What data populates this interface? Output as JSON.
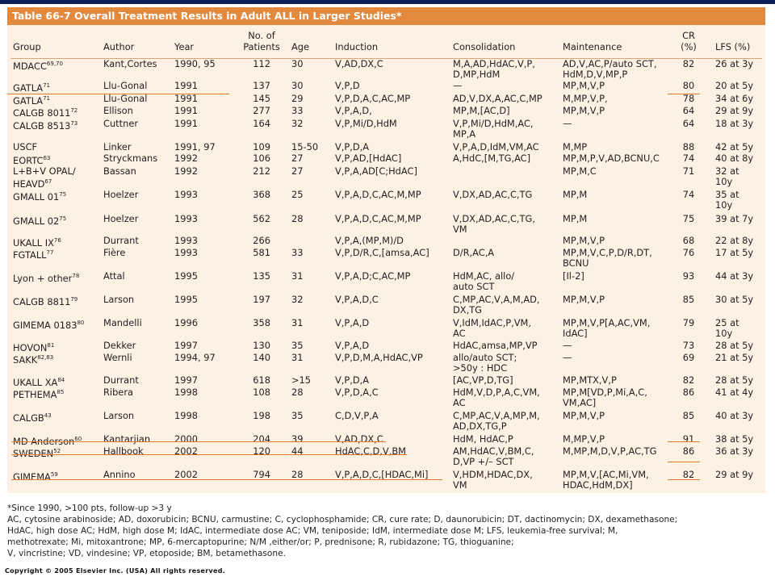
{
  "title": "Table 66-7  Overall Treatment Results in Adult ALL in Larger Studies*",
  "headers": {
    "group": "Group",
    "author": "Author",
    "year": "Year",
    "patients": [
      "No. of",
      "Patients"
    ],
    "age": "Age",
    "induction": "Induction",
    "consolidation": "Consolidation",
    "maintenance": "Maintenance",
    "cr": [
      "CR",
      "(%)"
    ],
    "lfs": "LFS (%)"
  },
  "rows": [
    {
      "group": [
        "MDACC"
      ],
      "sup": "69,70",
      "author": "Kant,Cortes",
      "year": "1990, 95",
      "patients": "112",
      "age": "30",
      "induction": [
        "V,AD,DX,C"
      ],
      "consolidation": [
        "M,A,AD,HdAC,V,P,",
        "   D,MP,HdM"
      ],
      "maintenance": [
        "AD,V,AC,P/auto SCT,",
        "   HdM,D,V,MP,P"
      ],
      "cr": "82",
      "lfs": [
        "26 at 3y"
      ]
    },
    {
      "group": [
        "GATLA"
      ],
      "sup": "71",
      "author": "Llu-Gonal",
      "year": "1991",
      "patients": "137",
      "age": "30",
      "induction": [
        "V,P,D"
      ],
      "consolidation": [
        "—"
      ],
      "maintenance": [
        "MP,M,V,P"
      ],
      "cr": "80",
      "lfs": [
        "20 at 5y"
      ]
    },
    {
      "group": [
        "GATLA"
      ],
      "sup": "71",
      "author": "Llu-Gonal",
      "year": "1991",
      "patients": "145",
      "age": "29",
      "induction": [
        "V,P,D,A,C,AC,MP"
      ],
      "consolidation": [
        "AD,V,DX,A,AC,C,MP"
      ],
      "maintenance": [
        "M,MP,V,P,"
      ],
      "cr": "78",
      "lfs": [
        "34 at 6y"
      ]
    },
    {
      "group": [
        "CALGB 8011"
      ],
      "sup": "72",
      "author": "Ellison",
      "year": "1991",
      "patients": "277",
      "age": "33",
      "induction": [
        "V,P,A,D,"
      ],
      "consolidation": [
        "MP,M,[AC,D]"
      ],
      "maintenance": [
        "MP,M,V,P"
      ],
      "cr": "64",
      "lfs": [
        "29 at 9y"
      ]
    },
    {
      "group": [
        "CALGB 8513"
      ],
      "sup": "73",
      "author": "Cuttner",
      "year": "1991",
      "patients": "164",
      "age": "32",
      "induction": [
        "V,P,Mi/D,HdM"
      ],
      "consolidation": [
        "V,P,Mi/D,HdM,AC,",
        "   MP,A"
      ],
      "maintenance": [
        "—"
      ],
      "cr": "64",
      "lfs": [
        "18 at 3y"
      ]
    },
    {
      "group": [
        "USCF"
      ],
      "sup": "",
      "author": "Linker",
      "year": "1991, 97",
      "patients": "109",
      "age": "15-50",
      "induction": [
        "V,P,D,A"
      ],
      "consolidation": [
        "V,P,A,D,IdM,VM,AC"
      ],
      "maintenance": [
        "M,MP"
      ],
      "cr": "88",
      "lfs": [
        "42 at 5y"
      ]
    },
    {
      "group": [
        "EORTC"
      ],
      "sup": "63",
      "author": "Stryckmans",
      "year": "1992",
      "patients": "106",
      "age": "27",
      "induction": [
        "V,P,AD,[HdAC]"
      ],
      "consolidation": [
        "A,HdC,[M,TG,AC]"
      ],
      "maintenance": [
        "MP,M,P,V,AD,BCNU,C"
      ],
      "cr": "74",
      "lfs": [
        "40 at 8y"
      ]
    },
    {
      "group": [
        "L+B+V OPAL/",
        "   HEAVD"
      ],
      "sup": "67",
      "author": "Bassan",
      "year": "1992",
      "patients": "212",
      "age": "27",
      "induction": [
        "V,P,A,AD[C;HdAC]"
      ],
      "consolidation": [
        ""
      ],
      "maintenance": [
        "MP,M,C"
      ],
      "cr": "71",
      "lfs": [
        "32 at",
        "   10y"
      ]
    },
    {
      "group": [
        "GMALL 01"
      ],
      "sup": "75",
      "author": "Hoelzer",
      "year": "1993",
      "patients": "368",
      "age": "25",
      "induction": [
        "V,P,A,D,C,AC,M,MP"
      ],
      "consolidation": [
        "V,DX,AD,AC,C,TG"
      ],
      "maintenance": [
        "MP,M"
      ],
      "cr": "74",
      "lfs": [
        "35 at",
        "   10y"
      ]
    },
    {
      "group": [
        "GMALL 02"
      ],
      "sup": "75",
      "author": "Hoelzer",
      "year": "1993",
      "patients": "562",
      "age": "28",
      "induction": [
        "V,P,A,D,C,AC,M,MP"
      ],
      "consolidation": [
        "V,DX,AD,AC,C,TG,",
        "   VM"
      ],
      "maintenance": [
        "MP,M"
      ],
      "cr": "75",
      "lfs": [
        "39 at 7y"
      ]
    },
    {
      "group": [
        "UKALL IX"
      ],
      "sup": "76",
      "author": "Durrant",
      "year": "1993",
      "patients": "266",
      "age": "",
      "induction": [
        "V,P,A,(MP,M)/D"
      ],
      "consolidation": [
        ""
      ],
      "maintenance": [
        "MP,M,V,P"
      ],
      "cr": "68",
      "lfs": [
        "22 at 8y"
      ]
    },
    {
      "group": [
        "FGTALL"
      ],
      "sup": "77",
      "author": "Fière",
      "year": "1993",
      "patients": "581",
      "age": "33",
      "induction": [
        "V,P,D/R,C,[amsa,AC]"
      ],
      "consolidation": [
        "D/R,AC,A"
      ],
      "maintenance": [
        "MP,M,V,C,P,D/R,DT,",
        "   BCNU"
      ],
      "cr": "76",
      "lfs": [
        "17 at 5y"
      ]
    },
    {
      "group": [
        "Lyon + other"
      ],
      "sup": "78",
      "author": "Attal",
      "year": "1995",
      "patients": "135",
      "age": "31",
      "induction": [
        "V,P,A,D;C,AC,MP"
      ],
      "consolidation": [
        "HdM,AC, allo/",
        "   auto SCT"
      ],
      "maintenance": [
        "[Il-2]"
      ],
      "cr": "93",
      "lfs": [
        "44 at 3y"
      ]
    },
    {
      "group": [
        "CALGB 8811"
      ],
      "sup": "79",
      "author": "Larson",
      "year": "1995",
      "patients": "197",
      "age": "32",
      "induction": [
        "V,P,A,D,C"
      ],
      "consolidation": [
        "C,MP,AC,V,A,M,AD,",
        "   DX,TG"
      ],
      "maintenance": [
        "MP,M,V,P"
      ],
      "cr": "85",
      "lfs": [
        "30 at 5y"
      ]
    },
    {
      "group": [
        "GIMEMA 0183"
      ],
      "sup": "80",
      "author": "Mandelli",
      "year": "1996",
      "patients": "358",
      "age": "31",
      "induction": [
        "V,P,A,D"
      ],
      "consolidation": [
        "V,IdM,IdAC,P,VM,",
        "   AC"
      ],
      "maintenance": [
        "MP,M,V,P[A,AC,VM,",
        "   IdAC]"
      ],
      "cr": "79",
      "lfs": [
        "25 at",
        "   10y"
      ]
    },
    {
      "group": [
        "HOVON"
      ],
      "sup": "81",
      "author": "Dekker",
      "year": "1997",
      "patients": "130",
      "age": "35",
      "induction": [
        "V,P,A,D"
      ],
      "consolidation": [
        "HdAC,amsa,MP,VP"
      ],
      "maintenance": [
        "—"
      ],
      "cr": "73",
      "lfs": [
        "28 at 5y"
      ]
    },
    {
      "group": [
        "SAKK"
      ],
      "sup": "82,83",
      "author": "Wernli",
      "year": "1994, 97",
      "patients": "140",
      "age": "31",
      "induction": [
        "V,P,D,M,A,HdAC,VP"
      ],
      "consolidation": [
        "allo/auto SCT;",
        "   >50y : HDC"
      ],
      "maintenance": [
        "—"
      ],
      "cr": "69",
      "lfs": [
        "21 at 5y"
      ]
    },
    {
      "group": [
        "UKALL XA"
      ],
      "sup": "84",
      "author": "Durrant",
      "year": "1997",
      "patients": "618",
      "age": ">15",
      "induction": [
        "V,P,D,A"
      ],
      "consolidation": [
        "[AC,VP,D,TG]"
      ],
      "maintenance": [
        "MP,MTX,V,P"
      ],
      "cr": "82",
      "lfs": [
        "28 at 5y"
      ]
    },
    {
      "group": [
        "PETHEMA"
      ],
      "sup": "85",
      "author": "Ribera",
      "year": "1998",
      "patients": "108",
      "age": "28",
      "induction": [
        "V,P,D,A,C"
      ],
      "consolidation": [
        "HdM,V,D,P,A,C,VM,",
        "   AC"
      ],
      "maintenance": [
        "MP,M[VD,P,Mi,A,C,",
        "   VM,AC]"
      ],
      "cr": "86",
      "lfs": [
        "41 at 4y"
      ]
    },
    {
      "group": [
        "CALGB"
      ],
      "sup": "43",
      "author": "Larson",
      "year": "1998",
      "patients": "198",
      "age": "35",
      "induction": [
        "C,D,V,P,A"
      ],
      "consolidation": [
        "C,MP,AC,V,A,MP,M,",
        "   AD,DX,TG,P"
      ],
      "maintenance": [
        "MP,M,V,P"
      ],
      "cr": "85",
      "lfs": [
        "40 at 3y"
      ]
    },
    {
      "group": [
        "MD Anderson"
      ],
      "sup": "60",
      "author": "Kantarjian",
      "year": "2000",
      "patients": "204",
      "age": "39",
      "induction": [
        "V,AD,DX,C"
      ],
      "consolidation": [
        "HdM, HdAC,P"
      ],
      "maintenance": [
        "M,MP,V,P"
      ],
      "cr": "91",
      "lfs": [
        "38 at 5y"
      ]
    },
    {
      "group": [
        "SWEDEN"
      ],
      "sup": "52",
      "author": "Hallbook",
      "year": "2002",
      "patients": "120",
      "age": "44",
      "induction": [
        "HdAC,C,D,V,BM"
      ],
      "consolidation": [
        "AM,HdAC,V,BM,C,",
        "   D,VP +/– SCT"
      ],
      "maintenance": [
        "M,MP,M,D,V,P,AC,TG"
      ],
      "cr": "86",
      "lfs": [
        "36 at 3y"
      ]
    },
    {
      "group": [
        "GIMEMA"
      ],
      "sup": "59",
      "author": "Annino",
      "year": "2002",
      "patients": "794",
      "age": "28",
      "induction": [
        "V,P,A,D,C,[HDAC,Mi]"
      ],
      "consolidation": [
        "V,HDM,HDAC,DX,",
        "   VM"
      ],
      "maintenance": [
        "MP,M,V,[AC,Mi,VM,",
        "   HDAC,HdM,DX]"
      ],
      "cr": "82",
      "lfs": [
        "29 at 9y"
      ]
    }
  ],
  "footnotes": [
    "*Since 1990, >100 pts, follow-up >3 y",
    "AC, cytosine arabinoside; AD, doxorubicin; BCNU, carmustine; C, cyclophosphamide; CR, cure rate; D, daunorubicin; DT, dactinomycin; DX, dexamethasone;",
    "HdAC, high dose AC; HdM, high dose M; IdAC, intermediate dose AC; VM, teniposide; IdM, intermediate dose M; LFS, leukemia-free survival; M,",
    "methotrexate; Mi, mitoxantrone; MP, 6-mercaptopurine; N/M ,either/or; P, prednisone; R, rubidazone; TG, thioguanine;",
    "V, vincristine; VD, vindesine; VP, etoposide; BM, betamethasone."
  ],
  "copyright": "Copyright © 2005 Elsevier Inc. (USA) All rights reserved.",
  "colors": {
    "title_bar": "#e2893d",
    "panel": "#fdf1e4",
    "underline": "#e07a2a",
    "top_bar": "#0b1f5c"
  }
}
